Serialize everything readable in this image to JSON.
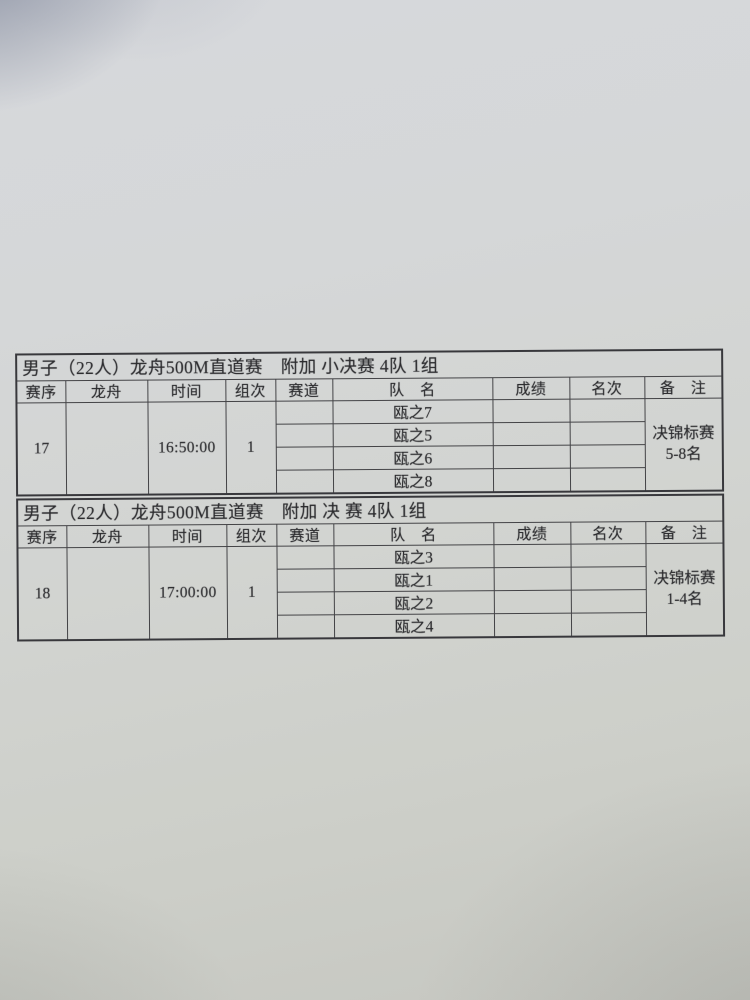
{
  "photo": {
    "paper_color": "#d2d4d1",
    "line_color": "#434346",
    "text_color": "#2b2b2e"
  },
  "tables": [
    {
      "title": "男子（22人）龙舟500M直道赛　附加 小决赛 4队 1组",
      "columns": [
        "赛序",
        "龙舟",
        "时间",
        "组次",
        "赛道",
        "队　名",
        "成绩",
        "名次",
        "备　注"
      ],
      "race_no": "17",
      "boat": "",
      "time": "16:50:00",
      "heat": "1",
      "entries": [
        {
          "lane": "",
          "team": "瓯之7",
          "result": "",
          "rank": ""
        },
        {
          "lane": "",
          "team": "瓯之5",
          "result": "",
          "rank": ""
        },
        {
          "lane": "",
          "team": "瓯之6",
          "result": "",
          "rank": ""
        },
        {
          "lane": "",
          "team": "瓯之8",
          "result": "",
          "rank": ""
        }
      ],
      "remark_line1": "决锦标赛",
      "remark_line2": "5-8名"
    },
    {
      "title": "男子（22人）龙舟500M直道赛　附加 决 赛 4队 1组",
      "columns": [
        "赛序",
        "龙舟",
        "时间",
        "组次",
        "赛道",
        "队　名",
        "成绩",
        "名次",
        "备　注"
      ],
      "race_no": "18",
      "boat": "",
      "time": "17:00:00",
      "heat": "1",
      "entries": [
        {
          "lane": "",
          "team": "瓯之3",
          "result": "",
          "rank": ""
        },
        {
          "lane": "",
          "team": "瓯之1",
          "result": "",
          "rank": ""
        },
        {
          "lane": "",
          "team": "瓯之2",
          "result": "",
          "rank": ""
        },
        {
          "lane": "",
          "team": "瓯之4",
          "result": "",
          "rank": ""
        }
      ],
      "remark_line1": "决锦标赛",
      "remark_line2": "1-4名"
    }
  ]
}
